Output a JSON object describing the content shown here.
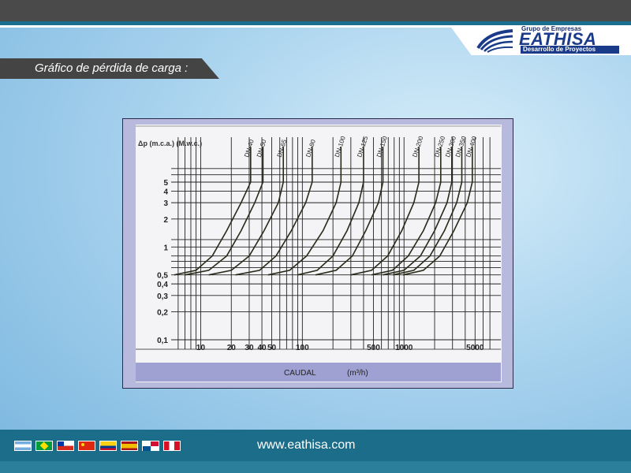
{
  "header": {
    "logo_group": "Grupo de Empresas",
    "logo_name": "EATHISA",
    "logo_subtitle": "Desarrollo de Proyectos",
    "page_title": "Gráfico de pérdida de carga :"
  },
  "footer": {
    "website": "www.eathisa.com",
    "flags": [
      "argentina-flag",
      "brazil-flag",
      "chile-flag",
      "china-flag",
      "colombia-flag",
      "spain-flag",
      "panama-flag",
      "peru-flag"
    ]
  },
  "colors": {
    "topbar": "#4a4a4a",
    "accent": "#1a6e8f",
    "brand": "#1a3a8a",
    "chart_bg": "#b7b9dd",
    "curve": "#2a2a1a"
  },
  "chart_data": {
    "type": "line",
    "ylabel": "Δp (m.c.a.) (M.w.c.)",
    "xlabel": "CAUDAL",
    "xunit": "(m³/h)",
    "xscale": "log",
    "yscale": "log",
    "xlim": [
      5.5,
      7500
    ],
    "ylim": [
      0.1,
      5
    ],
    "x_ticks": [
      {
        "label": "10",
        "value": 10
      },
      {
        "label": "20",
        "value": 20
      },
      {
        "label": "30",
        "value": 30
      },
      {
        "label": "40",
        "value": 40
      },
      {
        "label": "50",
        "value": 50
      },
      {
        "label": "100",
        "value": 100
      },
      {
        "label": "500",
        "value": 500
      },
      {
        "label": "1000",
        "value": 1000
      },
      {
        "label": "5000",
        "value": 5000
      }
    ],
    "y_ticks": [
      {
        "label": "5",
        "value": 5
      },
      {
        "label": "4",
        "value": 4
      },
      {
        "label": "3",
        "value": 3
      },
      {
        "label": "2",
        "value": 2
      },
      {
        "label": "1",
        "value": 1
      },
      {
        "label": "0,5",
        "value": 0.5
      },
      {
        "label": "0,4",
        "value": 0.4
      },
      {
        "label": "0,3",
        "value": 0.3
      },
      {
        "label": "0,2",
        "value": 0.2
      },
      {
        "label": "0,1",
        "value": 0.1
      }
    ],
    "grid": true,
    "series": [
      {
        "name": "DN-40",
        "points": [
          [
            5.5,
            0.5
          ],
          [
            9,
            0.56
          ],
          [
            13,
            0.8
          ],
          [
            18,
            1.5
          ],
          [
            25,
            3
          ],
          [
            31,
            5
          ],
          [
            31,
            12
          ]
        ]
      },
      {
        "name": "DN-50",
        "points": [
          [
            7,
            0.5
          ],
          [
            12,
            0.56
          ],
          [
            18,
            0.8
          ],
          [
            25,
            1.5
          ],
          [
            34,
            3
          ],
          [
            41,
            5
          ],
          [
            41,
            12
          ]
        ]
      },
      {
        "name": "DN-65",
        "points": [
          [
            12,
            0.5
          ],
          [
            20,
            0.56
          ],
          [
            30,
            0.8
          ],
          [
            42,
            1.5
          ],
          [
            58,
            3
          ],
          [
            65,
            5
          ],
          [
            65,
            12
          ]
        ]
      },
      {
        "name": "DN-80",
        "points": [
          [
            22,
            0.5
          ],
          [
            38,
            0.56
          ],
          [
            55,
            0.8
          ],
          [
            78,
            1.5
          ],
          [
            108,
            3
          ],
          [
            125,
            5
          ],
          [
            125,
            12
          ]
        ]
      },
      {
        "name": "DN-100",
        "points": [
          [
            46,
            0.5
          ],
          [
            75,
            0.56
          ],
          [
            110,
            0.8
          ],
          [
            160,
            1.5
          ],
          [
            215,
            3
          ],
          [
            240,
            5
          ],
          [
            240,
            12
          ]
        ]
      },
      {
        "name": "DN-125",
        "points": [
          [
            90,
            0.5
          ],
          [
            140,
            0.56
          ],
          [
            200,
            0.8
          ],
          [
            275,
            1.5
          ],
          [
            360,
            3
          ],
          [
            400,
            5
          ],
          [
            400,
            12
          ]
        ]
      },
      {
        "name": "DN-150",
        "points": [
          [
            135,
            0.5
          ],
          [
            215,
            0.56
          ],
          [
            310,
            0.8
          ],
          [
            420,
            1.5
          ],
          [
            560,
            3
          ],
          [
            620,
            5
          ],
          [
            620,
            12
          ]
        ]
      },
      {
        "name": "DN-200",
        "points": [
          [
            300,
            0.5
          ],
          [
            480,
            0.56
          ],
          [
            690,
            0.8
          ],
          [
            950,
            1.5
          ],
          [
            1250,
            3
          ],
          [
            1400,
            5
          ],
          [
            1400,
            12
          ]
        ]
      },
      {
        "name": "DN-250",
        "points": [
          [
            480,
            0.5
          ],
          [
            770,
            0.56
          ],
          [
            1100,
            0.8
          ],
          [
            1550,
            1.5
          ],
          [
            2050,
            3
          ],
          [
            2300,
            5
          ],
          [
            2300,
            12
          ]
        ]
      },
      {
        "name": "DN-300",
        "points": [
          [
            620,
            0.5
          ],
          [
            1000,
            0.56
          ],
          [
            1450,
            0.8
          ],
          [
            2000,
            1.5
          ],
          [
            2650,
            3
          ],
          [
            2950,
            5
          ],
          [
            2950,
            12
          ]
        ]
      },
      {
        "name": "DN-350",
        "points": [
          [
            780,
            0.5
          ],
          [
            1250,
            0.56
          ],
          [
            1800,
            0.8
          ],
          [
            2500,
            1.5
          ],
          [
            3300,
            3
          ],
          [
            3700,
            5
          ],
          [
            3700,
            12
          ]
        ]
      },
      {
        "name": "DN-400",
        "points": [
          [
            980,
            0.5
          ],
          [
            1550,
            0.56
          ],
          [
            2250,
            0.8
          ],
          [
            3100,
            1.5
          ],
          [
            4200,
            3
          ],
          [
            4700,
            5
          ],
          [
            4700,
            12
          ]
        ]
      }
    ]
  }
}
